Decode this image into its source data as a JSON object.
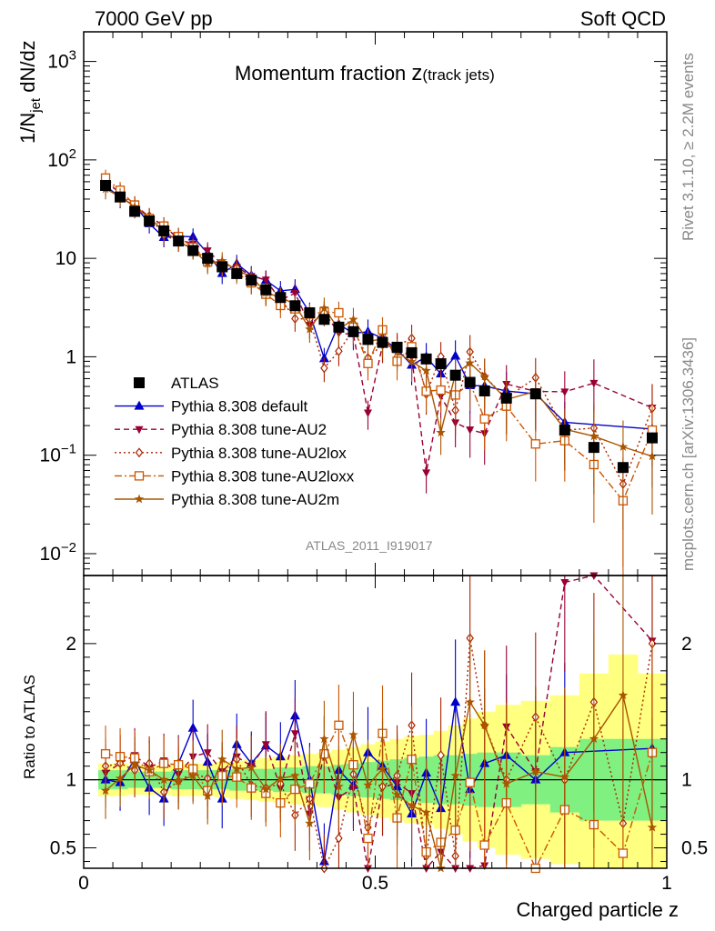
{
  "header": {
    "left": "7000 GeV pp",
    "right": "Soft QCD"
  },
  "side": {
    "rivet": "Rivet 3.1.10, ≥ 2.2M events",
    "mcplots": "mcplots.cern.ch [arXiv:1306.3436]"
  },
  "title": {
    "main": "Momentum fraction ",
    "var": "z",
    "sub": "(track jets)"
  },
  "analysis_id": "ATLAS_2011_I919017",
  "ylabel": {
    "pre": "1/N",
    "sub": "jet",
    "post": " dN/dz"
  },
  "ratio_label": "Ratio to ATLAS",
  "xlabel": "Charged particle z",
  "legend": [
    "ATLAS",
    "Pythia 8.308 default",
    "Pythia 8.308 tune-AU2",
    "Pythia 8.308 tune-AU2lox",
    "Pythia 8.308 tune-AU2loxx",
    "Pythia 8.308 tune-AU2m"
  ],
  "colors": {
    "data": "#000000",
    "default": "#0000cc",
    "AU2": "#990033",
    "AU2lox": "#aa2200",
    "AU2loxx": "#cc5500",
    "AU2m": "#aa5500",
    "band_inner": "#80f080",
    "band_outer": "#ffff80"
  },
  "chart_data": {
    "type": "scatter",
    "top_panel": {
      "ylog": true,
      "ylim": [
        0.006,
        2000
      ],
      "ytick_labels": [
        "10^-2",
        "10^-1",
        "1",
        "10",
        "10^2",
        "10^3"
      ]
    },
    "ratio_panel": {
      "ylim": [
        0.35,
        2.5
      ],
      "ytick_labels": [
        "0.5",
        "1",
        "2"
      ]
    },
    "xlim": [
      0,
      1
    ],
    "xtick_labels": [
      "0",
      "0.5",
      "1"
    ],
    "x": [
      0.0375,
      0.0625,
      0.0875,
      0.1125,
      0.1375,
      0.1625,
      0.1875,
      0.2125,
      0.2375,
      0.2625,
      0.2875,
      0.3125,
      0.3375,
      0.3625,
      0.3875,
      0.4125,
      0.4375,
      0.4625,
      0.4875,
      0.5125,
      0.5375,
      0.5625,
      0.5875,
      0.6125,
      0.6375,
      0.6625,
      0.6875,
      0.725,
      0.775,
      0.825,
      0.875,
      0.925,
      0.975
    ],
    "data_values": [
      55,
      42,
      30,
      24,
      19,
      15,
      12,
      10,
      8.2,
      7.0,
      6.0,
      4.8,
      4.0,
      3.3,
      2.8,
      2.4,
      2.0,
      1.8,
      1.5,
      1.4,
      1.25,
      1.1,
      0.95,
      0.85,
      0.65,
      0.55,
      0.45,
      0.38,
      0.42,
      0.18,
      0.12,
      0.075,
      0.15
    ],
    "series": [
      {
        "name": "Pythia 8.308 default",
        "key": "default",
        "ratio": [
          1.0,
          0.98,
          1.15,
          0.94,
          0.86,
          1.12,
          1.38,
          1.13,
          0.86,
          1.26,
          1.12,
          1.25,
          1.17,
          1.47,
          1.0,
          0.4,
          1.07,
          0.96,
          1.2,
          1.1,
          0.95,
          0.75,
          1.05,
          0.79,
          1.57,
          0.93,
          1.12,
          1.18,
          1.0,
          1.2,
          null,
          null,
          1.23
        ]
      },
      {
        "name": "Pythia 8.308 tune-AU2",
        "key": "AU2",
        "ratio": [
          1.05,
          1.12,
          1.18,
          1.09,
          1.14,
          1.04,
          1.17,
          1.2,
          1.06,
          1.17,
          1.1,
          1.26,
          0.94,
          1.34,
          0.75,
          1.18,
          0.87,
          0.94,
          0.18,
          0.94,
          0.98,
          0.9,
          0.07,
          0.47,
          0.33,
          0.33,
          0.37,
          1.39,
          1.06,
          2.45,
          4.5,
          null,
          2.02
        ]
      },
      {
        "name": "Pythia 8.308 tune-AU2lox",
        "key": "AU2lox",
        "ratio": [
          1.1,
          1.12,
          1.07,
          1.12,
          0.91,
          0.99,
          1.05,
          1.01,
          1.03,
          1.15,
          0.96,
          0.94,
          0.97,
          0.74,
          0.86,
          0.32,
          0.57,
          1.04,
          0.65,
          0.95,
          1.03,
          1.4,
          0.44,
          1.18,
          0.44,
          2.04,
          1.4,
          1.0,
          1.46,
          1.0,
          1.57,
          0.68,
          2.0
        ]
      },
      {
        "name": "Pythia 8.308 tune-AU2loxx",
        "key": "AU2loxx",
        "ratio": [
          1.19,
          1.17,
          1.16,
          1.06,
          1.12,
          1.11,
          1.08,
          0.92,
          1.03,
          1.02,
          0.94,
          0.9,
          0.83,
          0.93,
          0.97,
          1.19,
          1.4,
          1.11,
          0.57,
          1.34,
          0.72,
          1.15,
          0.47,
          0.54,
          0.63,
          0.98,
          0.52,
          0.83,
          0.31,
          0.78,
          0.67,
          0.46,
          1.2
        ]
      },
      {
        "name": "Pythia 8.308 tune-AU2m",
        "key": "AU2m",
        "ratio": [
          0.92,
          1.01,
          1.11,
          1.07,
          1.0,
          0.99,
          1.03,
          0.88,
          1.15,
          1.08,
          1.09,
          0.93,
          1.01,
          1.03,
          0.68,
          1.3,
          0.95,
          1.33,
          0.96,
          1.08,
          0.89,
          0.81,
          0.76,
          0.2,
          1.03,
          1.57,
          1.4,
          0.97,
          1.06,
          1.02,
          1.3,
          1.62,
          0.65
        ]
      }
    ],
    "band_inner": [
      0.07,
      0.07,
      0.06,
      0.06,
      0.06,
      0.07,
      0.07,
      0.07,
      0.07,
      0.08,
      0.08,
      0.08,
      0.09,
      0.09,
      0.1,
      0.1,
      0.11,
      0.12,
      0.13,
      0.14,
      0.15,
      0.16,
      0.17,
      0.18,
      0.18,
      0.19,
      0.2,
      0.2,
      0.18,
      0.24,
      0.3,
      0.3,
      0.3
    ],
    "band_outer": [
      0.12,
      0.12,
      0.11,
      0.11,
      0.11,
      0.12,
      0.12,
      0.12,
      0.13,
      0.14,
      0.15,
      0.16,
      0.17,
      0.18,
      0.19,
      0.2,
      0.22,
      0.24,
      0.26,
      0.28,
      0.3,
      0.32,
      0.33,
      0.36,
      0.4,
      0.45,
      0.5,
      0.55,
      0.58,
      0.62,
      0.78,
      0.92,
      0.78
    ]
  }
}
